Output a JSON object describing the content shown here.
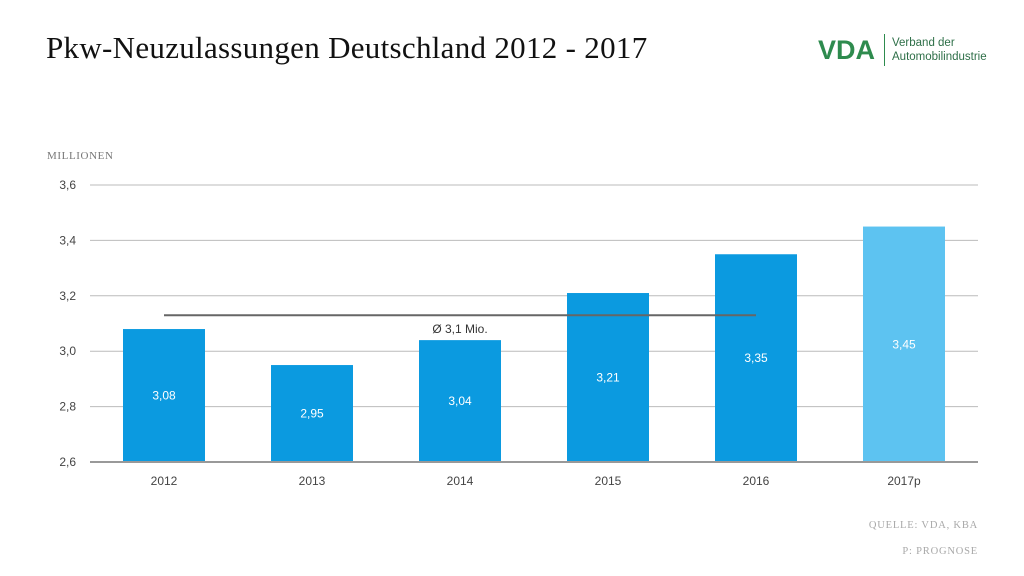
{
  "title": "Pkw-Neuzulassungen Deutschland 2012 - 2017",
  "logo": {
    "mark": "VDA",
    "line1": "Verband der",
    "line2": "Automobilindustrie"
  },
  "notes": {
    "source": "QUELLE: VDA, KBA",
    "forecast": "P: PROGNOSE"
  },
  "colors": {
    "bar": "#0b9ae0",
    "bar_forecast": "#5dc3f1",
    "avg_line": "#666666",
    "grid": "#bbbbbb",
    "axis_text": "#444444",
    "logo": "#2e8b4e"
  },
  "chart_data": {
    "type": "bar",
    "ylabel": "MILLIONEN",
    "ylim": [
      2.6,
      3.6
    ],
    "yticks": [
      2.6,
      2.8,
      3.0,
      3.2,
      3.4,
      3.6
    ],
    "ytick_labels": [
      "2,6",
      "2,8",
      "3,0",
      "3,2",
      "3,4",
      "3,6"
    ],
    "categories": [
      "2012",
      "2013",
      "2014",
      "2015",
      "2016",
      "2017p"
    ],
    "values": [
      3.08,
      2.95,
      3.04,
      3.21,
      3.35,
      3.45
    ],
    "value_labels": [
      "3,08",
      "2,95",
      "3,04",
      "3,21",
      "3,35",
      "3,45"
    ],
    "forecast": [
      false,
      false,
      false,
      false,
      false,
      true
    ],
    "grid": true,
    "average": {
      "value": 3.13,
      "label": "Ø 3,1 Mio.",
      "from": "2012",
      "to": "2016"
    }
  }
}
